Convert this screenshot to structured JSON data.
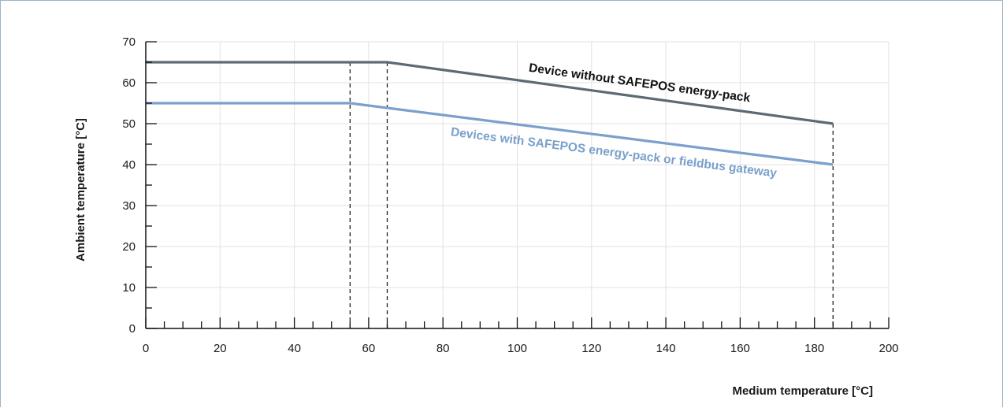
{
  "chart_data": {
    "type": "line",
    "xlabel": "Medium temperature  [°C]",
    "ylabel": "Ambient temperature [°C]",
    "xlim": [
      0,
      200
    ],
    "ylim": [
      0,
      70
    ],
    "x_ticks": [
      0,
      20,
      40,
      60,
      80,
      100,
      120,
      140,
      160,
      180,
      200
    ],
    "y_ticks": [
      0,
      10,
      20,
      30,
      40,
      50,
      60,
      70
    ],
    "x_minor_step": 5,
    "y_minor_step": 5,
    "grid": true,
    "legend": "inline-labels",
    "series": [
      {
        "name": "Device without SAFEPOS energy-pack",
        "color": "#5c6a72",
        "x": [
          0,
          65,
          185
        ],
        "y": [
          65,
          65,
          50
        ]
      },
      {
        "name": "Devices with SAFEPOS energy-pack or fieldbus gateway",
        "color": "#7aa0cb",
        "x": [
          0,
          55,
          185
        ],
        "y": [
          55,
          55,
          40
        ]
      }
    ],
    "drop_lines_x": [
      55,
      65,
      185
    ]
  }
}
